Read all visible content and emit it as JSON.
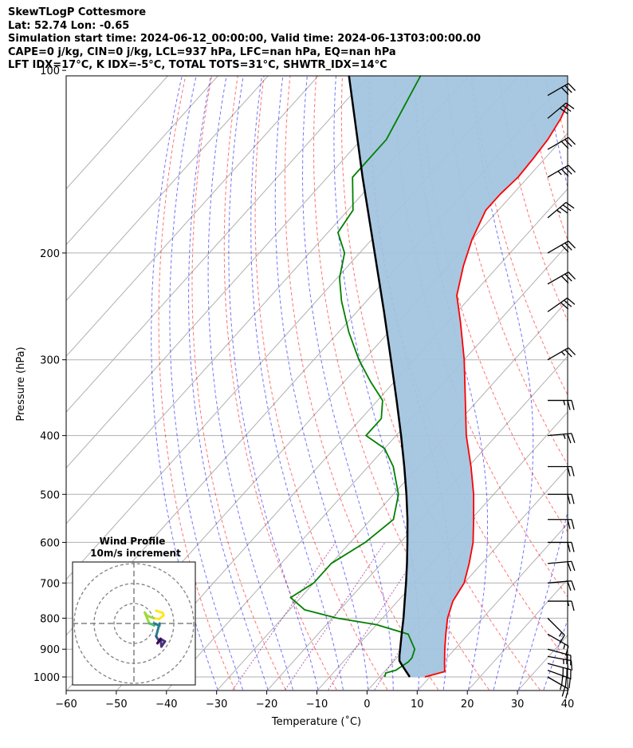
{
  "header": {
    "line1": "SkewTLogP Cottesmore",
    "line2": "Lat: 52.74   Lon: -0.65",
    "line3": "Simulation start time: 2024-06-12_00:00:00, Valid time: 2024-06-13T03:00:00.00",
    "line4": "CAPE=0 j/kg, CIN=0 j/kg, LCL=937 hPa, LFC=nan hPa, EQ=nan hPa",
    "line5": "LFT IDX=17°C, K IDX=-5°C, TOTAL TOTS=31°C, SHWTR_IDX=14°C"
  },
  "chart_data": {
    "type": "line",
    "title": "SkewTLogP Cottesmore",
    "xlabel": "Temperature (˚C)",
    "ylabel": "Pressure (hPa)",
    "xlim": [
      -60,
      40
    ],
    "ylim": [
      1040,
      100
    ],
    "x_ticks": [
      "−60",
      "−50",
      "−40",
      "−30",
      "−20",
      "−10",
      "0",
      "10",
      "20",
      "30",
      "40"
    ],
    "x_tick_values": [
      -60,
      -50,
      -40,
      -30,
      -20,
      -10,
      0,
      10,
      20,
      30,
      40
    ],
    "y_ticks": [
      "100",
      "200",
      "300",
      "400",
      "500",
      "600",
      "700",
      "800",
      "900",
      "1000"
    ],
    "y_tick_values": [
      100,
      200,
      300,
      400,
      500,
      600,
      700,
      800,
      900,
      1000
    ],
    "grid": true,
    "series": [
      {
        "name": "Temperature",
        "color": "#ff0000",
        "p": [
          1000,
          980,
          950,
          900,
          850,
          800,
          750,
          700,
          650,
          600,
          550,
          500,
          450,
          400,
          350,
          300,
          260,
          235,
          210,
          190,
          170,
          160,
          150,
          140,
          130,
          120,
          110,
          100
        ],
        "t": [
          9,
          12,
          10.5,
          8,
          5.5,
          3,
          1,
          0,
          -2.5,
          -5.5,
          -9.5,
          -14,
          -19.5,
          -26,
          -32.5,
          -40,
          -47.5,
          -53,
          -57,
          -60,
          -62.5,
          -62.5,
          -62,
          -62.3,
          -62.8,
          -64,
          -66,
          -69
        ]
      },
      {
        "name": "Dewpoint",
        "color": "#008000",
        "p": [
          1000,
          985,
          975,
          960,
          945,
          930,
          900,
          850,
          820,
          800,
          775,
          740,
          700,
          650,
          600,
          550,
          500,
          450,
          420,
          400,
          375,
          350,
          325,
          300,
          270,
          240,
          220,
          200,
          185,
          170,
          150,
          130,
          100
        ],
        "t": [
          1,
          0.5,
          2,
          2.5,
          3,
          3,
          2,
          -2,
          -10,
          -19,
          -27,
          -32,
          -30,
          -30,
          -27,
          -25.5,
          -29,
          -35,
          -40,
          -46,
          -46,
          -49,
          -55,
          -61,
          -68,
          -75,
          -79.5,
          -83,
          -88,
          -89,
          -95,
          -95,
          -100
        ]
      },
      {
        "name": "Parcel",
        "color": "#000000",
        "p": [
          1000,
          975,
          950,
          940,
          920,
          900,
          850,
          800,
          750,
          700,
          650,
          600,
          550,
          500,
          450,
          400,
          350,
          300,
          250,
          200,
          150,
          100
        ],
        "t": [
          6,
          3.9,
          1.8,
          1.0,
          0.0,
          -0.9,
          -3.3,
          -5.8,
          -8.6,
          -11.6,
          -14.9,
          -18.6,
          -22.7,
          -27.4,
          -32.8,
          -39.0,
          -46.2,
          -54.6,
          -64.6,
          -77.0,
          -93.0,
          -115.0
        ]
      }
    ],
    "shaded_region": {
      "name": "CAPE/CIN area",
      "color": "#a3c4df"
    },
    "wind_barbs": {
      "p": [
        1000,
        975,
        950,
        925,
        900,
        850,
        800,
        750,
        700,
        650,
        600,
        550,
        500,
        450,
        400,
        350,
        300,
        250,
        225,
        200,
        175,
        150,
        135,
        120,
        110
      ],
      "speed_kt": [
        25,
        30,
        30,
        25,
        20,
        15,
        15,
        15,
        20,
        20,
        20,
        20,
        20,
        20,
        25,
        25,
        25,
        30,
        30,
        30,
        35,
        35,
        30,
        30,
        30
      ],
      "dir_deg": [
        240,
        250,
        255,
        260,
        255,
        240,
        225,
        270,
        275,
        275,
        270,
        270,
        270,
        270,
        275,
        270,
        300,
        305,
        300,
        300,
        310,
        300,
        300,
        310,
        300
      ]
    },
    "inset": {
      "title_line1": "Wind Profile",
      "title_line2": "10m/s increment"
    }
  }
}
